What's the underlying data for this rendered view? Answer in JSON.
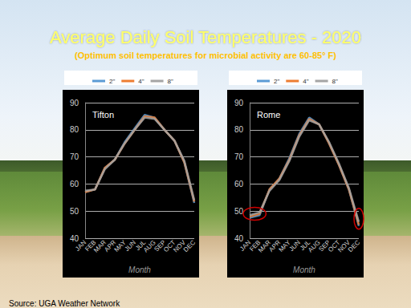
{
  "title": "Average Daily Soil Temperatures - 2020",
  "subtitle": "(Optimum soil temperatures for microbial activity are 60-85° F)",
  "source": "Source: UGA Weather Network",
  "chart_data": [
    {
      "type": "line",
      "title": "Tifton",
      "x_label": "Month",
      "categories": [
        "JAN",
        "FEB",
        "MAR",
        "APR",
        "MAY",
        "JUN",
        "JUL",
        "AUG",
        "SEP",
        "OCT",
        "NOV",
        "DEC"
      ],
      "series": [
        {
          "name": "2\"",
          "color": "#5b9bd5",
          "values": [
            57,
            58,
            66,
            69,
            75.5,
            80.5,
            85.5,
            84.5,
            80,
            76,
            68,
            53
          ]
        },
        {
          "name": "4\"",
          "color": "#ed7d31",
          "values": [
            57,
            58,
            66,
            69,
            75,
            80,
            85,
            84.5,
            80,
            76,
            68,
            53.5
          ]
        },
        {
          "name": "8\"",
          "color": "#a5a5a5",
          "values": [
            57.5,
            58,
            65.5,
            69,
            75,
            80,
            84.5,
            84,
            80,
            76,
            68.5,
            54
          ]
        }
      ],
      "ylim": [
        40,
        90
      ],
      "yticks": [
        40,
        50,
        60,
        70,
        80,
        90
      ],
      "grid": true,
      "legend": "top"
    },
    {
      "type": "line",
      "title": "Rome",
      "x_label": "Month",
      "categories": [
        "JAN",
        "FEB",
        "MAR",
        "APR",
        "MAY",
        "JUN",
        "JUL",
        "AUG",
        "SEP",
        "OCT",
        "NOV",
        "DEC"
      ],
      "series": [
        {
          "name": "2\"",
          "color": "#5b9bd5",
          "values": [
            47.5,
            48.5,
            58,
            62,
            69.5,
            78.5,
            84.5,
            82,
            75,
            67,
            58,
            44.5
          ]
        },
        {
          "name": "4\"",
          "color": "#ed7d31",
          "values": [
            48,
            49,
            58,
            62,
            69,
            78,
            84,
            82,
            75,
            67,
            58,
            45
          ]
        },
        {
          "name": "8\"",
          "color": "#a5a5a5",
          "values": [
            48.5,
            49.5,
            57.5,
            61.5,
            68.5,
            77.5,
            83.5,
            82,
            75.5,
            67.5,
            58.5,
            46
          ]
        }
      ],
      "ylim": [
        40,
        90
      ],
      "yticks": [
        40,
        50,
        60,
        70,
        80,
        90
      ],
      "grid": true,
      "legend": "top"
    }
  ]
}
